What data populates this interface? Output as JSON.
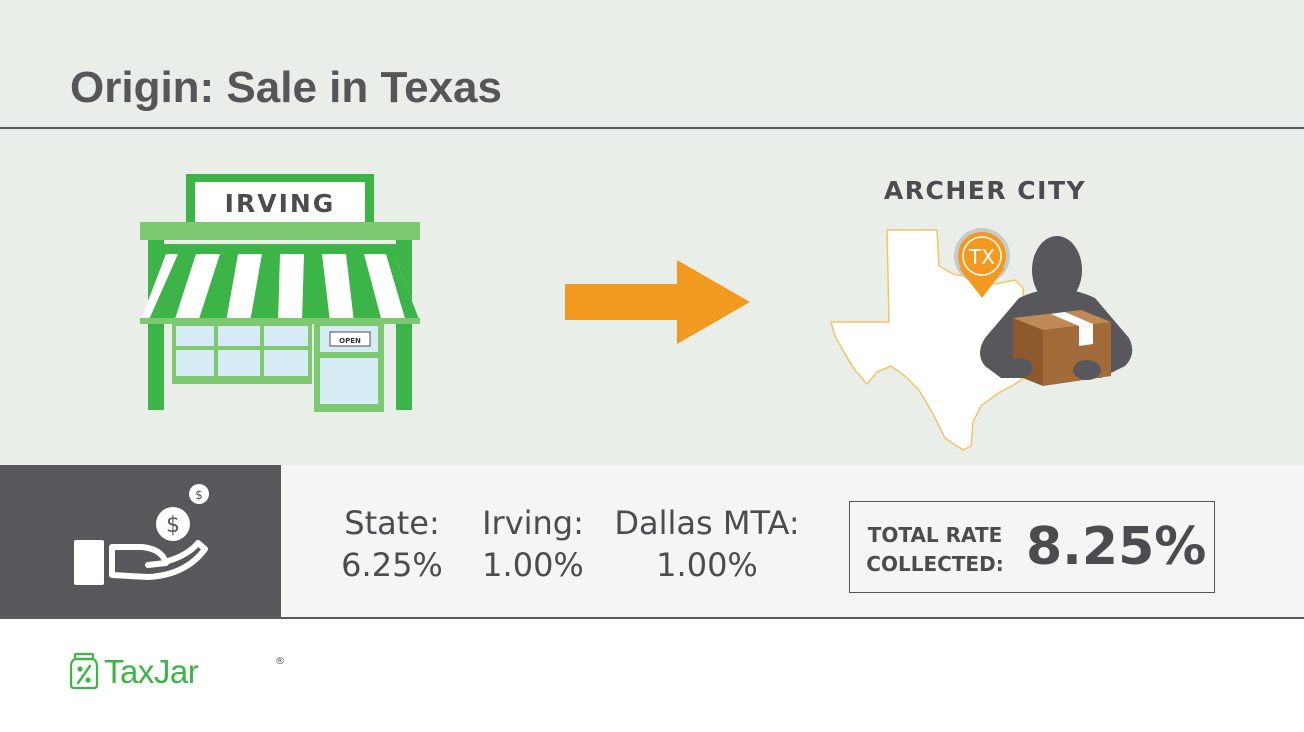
{
  "title": "Origin: Sale in Texas",
  "store": {
    "sign": "IRVING",
    "door_sign": "OPEN"
  },
  "destination": {
    "city": "ARCHER CITY",
    "pin_label": "TX"
  },
  "coin_symbol": "$",
  "rates": [
    {
      "name": "State:",
      "value": "6.25%"
    },
    {
      "name": "Irving:",
      "value": "1.00%"
    },
    {
      "name": "Dallas MTA:",
      "value": "1.00%"
    }
  ],
  "total": {
    "label_line1": "TOTAL RATE",
    "label_line2": "COLLECTED:",
    "value": "8.25%"
  },
  "brand": {
    "name": "TaxJar",
    "mark": "®"
  },
  "colors": {
    "background": "#e9eee9",
    "title": "#55565a",
    "store_green": "#3cb448",
    "arrow_orange": "#f29a1f",
    "panel_gray": "#58585c",
    "box_brown": "#a26b3a"
  },
  "icons": {
    "store": "storefront-icon",
    "arrow": "arrow-right-icon",
    "map": "texas-map-icon",
    "pin": "map-pin-icon",
    "person": "person-with-package-icon",
    "payment": "hand-money-icon",
    "logo": "taxjar-jar-icon"
  }
}
